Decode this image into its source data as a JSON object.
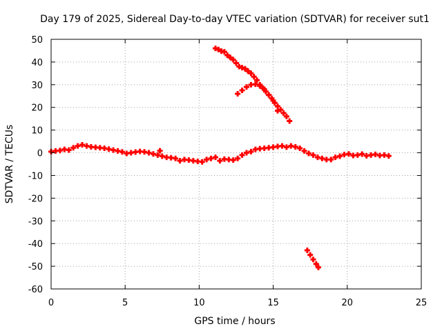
{
  "chart_data": {
    "type": "scatter",
    "title": "Day 179 of 2025, Sidereal Day-to-day VTEC variation (SDTVAR) for receiver sut1",
    "xlabel": "GPS time / hours",
    "ylabel": "SDTVAR / TECUs",
    "xlim": [
      0,
      25
    ],
    "ylim": [
      -60,
      50
    ],
    "xticks": [
      0,
      5,
      10,
      15,
      20,
      25
    ],
    "yticks": [
      -60,
      -50,
      -40,
      -30,
      -20,
      -10,
      0,
      10,
      20,
      30,
      40,
      50
    ],
    "xtick_labels": [
      "0",
      "5",
      "10",
      "15",
      "20",
      "25"
    ],
    "ytick_labels": [
      "-60",
      "-50",
      "-40",
      "-30",
      "-20",
      "-10",
      "0",
      "10",
      "20",
      "30",
      "40",
      "50"
    ],
    "grid": true,
    "legend": "none",
    "marker": "plus",
    "color": "#ff0000",
    "series": [
      {
        "name": "main-trace",
        "x": [
          0.0,
          0.3,
          0.6,
          0.9,
          1.2,
          1.5,
          1.8,
          2.1,
          2.4,
          2.7,
          3.0,
          3.3,
          3.6,
          3.9,
          4.2,
          4.5,
          4.8,
          5.1,
          5.4,
          5.7,
          6.0,
          6.3,
          6.6,
          6.9,
          7.2,
          7.35,
          7.5,
          7.8,
          8.1,
          8.4,
          8.7,
          9.0,
          9.3,
          9.6,
          9.9,
          10.2,
          10.5,
          10.8,
          11.1,
          11.4,
          11.7,
          12.0,
          12.3,
          12.6,
          12.9,
          13.2,
          13.5,
          13.8,
          14.1,
          14.4,
          14.7,
          15.0,
          15.3,
          15.6,
          15.9,
          16.2,
          16.5,
          16.8,
          17.1,
          17.4,
          17.7,
          18.0,
          18.3,
          18.6,
          18.9,
          19.2,
          19.5,
          19.8,
          20.1,
          20.4,
          20.7,
          21.0,
          21.3,
          21.6,
          21.9,
          22.2,
          22.5,
          22.8
        ],
        "y": [
          0.5,
          0.8,
          1.0,
          1.5,
          1.2,
          2.2,
          3.0,
          3.5,
          3.0,
          2.6,
          2.4,
          2.2,
          2.0,
          1.6,
          1.2,
          0.8,
          0.4,
          -0.3,
          0.0,
          0.3,
          0.6,
          0.4,
          0.0,
          -0.5,
          -1.0,
          0.9,
          -1.5,
          -2.0,
          -2.2,
          -2.5,
          -3.5,
          -3.0,
          -3.2,
          -3.5,
          -3.8,
          -4.0,
          -3.0,
          -2.5,
          -2.0,
          -3.5,
          -2.8,
          -3.0,
          -3.2,
          -2.5,
          -1.0,
          0.0,
          0.5,
          1.5,
          1.8,
          2.0,
          2.2,
          2.5,
          2.8,
          3.0,
          2.5,
          3.0,
          2.6,
          2.0,
          0.8,
          -0.3,
          -1.0,
          -2.0,
          -2.5,
          -3.0,
          -3.0,
          -2.0,
          -1.5,
          -0.8,
          -0.5,
          -1.2,
          -1.0,
          -0.6,
          -1.3,
          -1.0,
          -0.7,
          -1.2,
          -1.0,
          -1.4
        ]
      },
      {
        "name": "descending-arc-upper",
        "x": [
          11.1,
          11.3,
          11.5,
          11.7,
          11.9,
          12.1,
          12.3,
          12.5,
          12.7,
          12.9,
          13.1,
          13.3,
          13.5,
          13.7,
          13.9,
          14.1,
          14.3,
          14.5,
          14.7,
          14.9,
          15.1,
          15.3,
          15.5,
          15.7,
          15.9,
          16.1
        ],
        "y": [
          46.0,
          45.5,
          44.8,
          44.5,
          43.0,
          42.0,
          41.0,
          39.5,
          38.0,
          37.5,
          37.0,
          36.0,
          35.0,
          33.5,
          32.0,
          30.0,
          28.5,
          27.0,
          25.5,
          24.0,
          22.0,
          20.5,
          19.0,
          17.5,
          16.0,
          14.0
        ]
      },
      {
        "name": "descending-arc-lower",
        "x": [
          12.6,
          12.9,
          13.2,
          13.5,
          13.8,
          14.1,
          14.4,
          14.7,
          15.0,
          15.3
        ],
        "y": [
          26.0,
          27.5,
          29.0,
          30.0,
          30.2,
          29.5,
          28.0,
          25.5,
          23.0,
          18.5
        ]
      },
      {
        "name": "lower-arc",
        "x": [
          17.3,
          17.5,
          17.7,
          17.9,
          18.05
        ],
        "y": [
          -43.0,
          -45.0,
          -47.0,
          -49.0,
          -50.5
        ]
      }
    ]
  }
}
